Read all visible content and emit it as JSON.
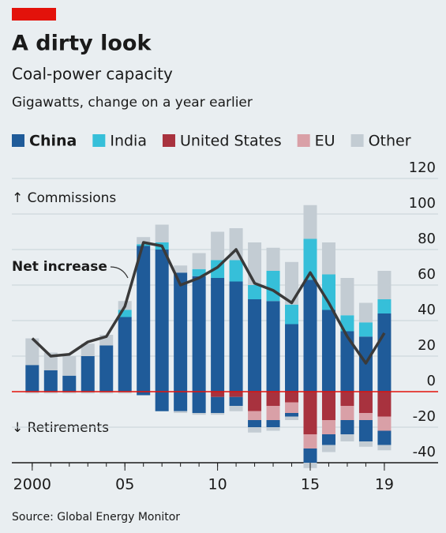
{
  "chart_data": {
    "type": "stacked_bar_line",
    "title": "A dirty look",
    "subtitle": "Coal-power capacity",
    "axis_label": "Gigawatts, change on a year earlier",
    "annotations": {
      "commissions": "↑ Commissions",
      "retirements": "↓ Retirements"
    },
    "source": "Source: Global Energy Monitor",
    "x": [
      2000,
      2001,
      2002,
      2003,
      2004,
      2005,
      2006,
      2007,
      2008,
      2009,
      2010,
      2011,
      2012,
      2013,
      2014,
      2015,
      2016,
      2017,
      2018,
      2019
    ],
    "xlim": [
      1998.9,
      2021.9
    ],
    "xticks": [
      {
        "value": 2000,
        "label": "2000"
      },
      {
        "value": 2005,
        "label": "05"
      },
      {
        "value": 2010,
        "label": "10"
      },
      {
        "value": 2015,
        "label": "15"
      },
      {
        "value": 2019,
        "label": "19"
      }
    ],
    "ylim": [
      -40,
      120
    ],
    "yticks": [
      -40,
      -20,
      0,
      20,
      40,
      60,
      80,
      100,
      120
    ],
    "grid": true,
    "series": [
      {
        "name": "China",
        "color": "#1f5b99",
        "commissions": [
          15,
          12,
          9,
          20,
          26,
          42,
          82,
          80,
          67,
          65,
          64,
          62,
          52,
          51,
          38,
          63,
          46,
          34,
          31,
          44
        ],
        "retirements": [
          0,
          0,
          0,
          0,
          0,
          0,
          -2,
          -11,
          -11,
          -12,
          -9,
          -5,
          -4,
          -4,
          -2,
          -8,
          -6,
          -8,
          -12,
          -8
        ]
      },
      {
        "name": "India",
        "color": "#36bfd9",
        "commissions": [
          0,
          0,
          0,
          0,
          0,
          4,
          1,
          4,
          0,
          4,
          10,
          12,
          8,
          17,
          11,
          23,
          20,
          9,
          8,
          8
        ]
      },
      {
        "name": "United States",
        "color": "#a8323e",
        "retirements": [
          0,
          0,
          0,
          0,
          0,
          0,
          0,
          0,
          0,
          0,
          -3,
          -3,
          -11,
          -8,
          -6,
          -24,
          -16,
          -8,
          -12,
          -14
        ]
      },
      {
        "name": "EU",
        "color": "#d9a0a7",
        "retirements": [
          0,
          0,
          0,
          0,
          0,
          0,
          0,
          0,
          0,
          0,
          0,
          0,
          -5,
          -8,
          -6,
          -8,
          -8,
          -8,
          -4,
          -8
        ]
      },
      {
        "name": "Other",
        "color": "#c3ccd3",
        "commissions": [
          15,
          10,
          11,
          7,
          6,
          5,
          4,
          10,
          4,
          9,
          16,
          18,
          24,
          13,
          24,
          19,
          18,
          21,
          11,
          16
        ],
        "retirements": [
          -1,
          -1,
          -1,
          -1,
          -1,
          -1,
          0,
          0,
          -1,
          -1,
          -1,
          -3,
          -3,
          -2,
          -2,
          -3,
          -4,
          -4,
          -3,
          -3
        ]
      }
    ],
    "line": {
      "name": "Net increase",
      "color": "#3a3a3a",
      "values": [
        30,
        20,
        21,
        28,
        31,
        48,
        84,
        82,
        60,
        64,
        70,
        80,
        61,
        57,
        50,
        67,
        50,
        31,
        16,
        33
      ]
    }
  }
}
